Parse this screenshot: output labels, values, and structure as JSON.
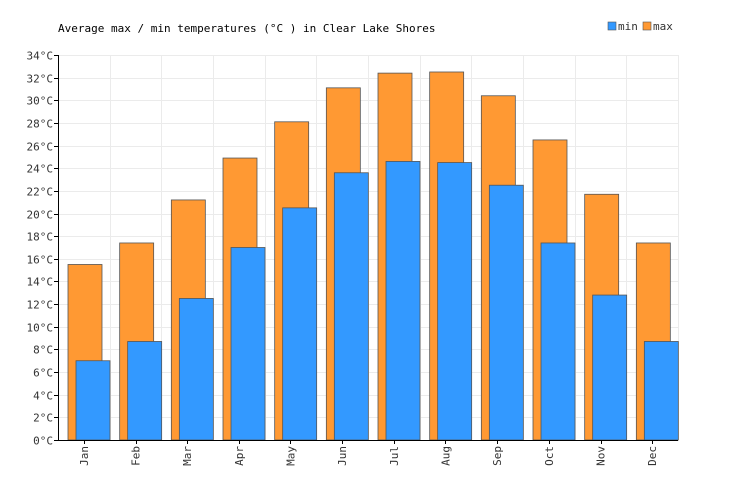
{
  "chart_data": {
    "type": "bar",
    "title": "Average max / min temperatures (°C ) in Clear Lake Shores",
    "categories": [
      "Jan",
      "Feb",
      "Mar",
      "Apr",
      "May",
      "Jun",
      "Jul",
      "Aug",
      "Sep",
      "Oct",
      "Nov",
      "Dec"
    ],
    "series": [
      {
        "name": "max",
        "color": "#ff9933",
        "values": [
          15.5,
          17.4,
          21.2,
          24.9,
          28.1,
          31.1,
          32.4,
          32.5,
          30.4,
          26.5,
          21.7,
          17.4
        ]
      },
      {
        "name": "min",
        "color": "#3399ff",
        "values": [
          7.0,
          8.7,
          12.5,
          17.0,
          20.5,
          23.6,
          24.6,
          24.5,
          22.5,
          17.4,
          12.8,
          8.7
        ]
      }
    ],
    "legend": {
      "placement": "top-right",
      "order": [
        "min",
        "max"
      ]
    },
    "ylim": [
      0,
      34
    ],
    "y_ticks": [
      0,
      2,
      4,
      6,
      8,
      10,
      12,
      14,
      16,
      18,
      20,
      22,
      24,
      26,
      28,
      30,
      32,
      34
    ],
    "y_tick_suffix": "°C",
    "grid": true,
    "xlabel": "",
    "ylabel": ""
  }
}
